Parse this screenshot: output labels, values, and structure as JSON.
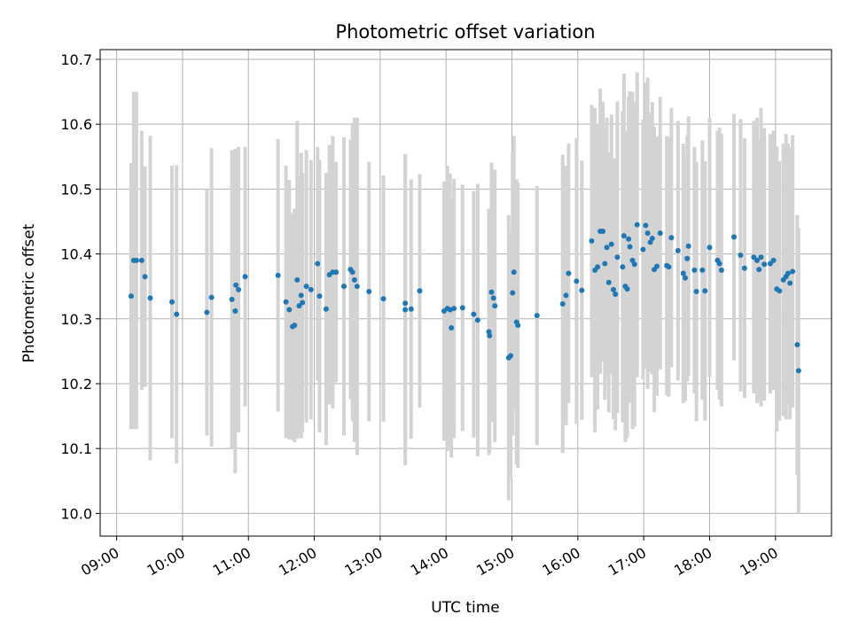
{
  "chart_data": {
    "type": "scatter",
    "title": "Photometric offset variation",
    "xlabel": "UTC time",
    "ylabel": "Photometric offset",
    "x_unit": "hours UTC",
    "xlim": [
      8.75,
      19.85
    ],
    "ylim": [
      9.965,
      10.715
    ],
    "x_ticks": [
      {
        "value": 9,
        "label": "09:00"
      },
      {
        "value": 10,
        "label": "10:00"
      },
      {
        "value": 11,
        "label": "11:00"
      },
      {
        "value": 12,
        "label": "12:00"
      },
      {
        "value": 13,
        "label": "13:00"
      },
      {
        "value": 14,
        "label": "14:00"
      },
      {
        "value": 15,
        "label": "15:00"
      },
      {
        "value": 16,
        "label": "16:00"
      },
      {
        "value": 17,
        "label": "17:00"
      },
      {
        "value": 18,
        "label": "18:00"
      },
      {
        "value": 19,
        "label": "19:00"
      }
    ],
    "y_ticks": [
      {
        "value": 10.0,
        "label": "10.0"
      },
      {
        "value": 10.1,
        "label": "10.1"
      },
      {
        "value": 10.2,
        "label": "10.2"
      },
      {
        "value": 10.3,
        "label": "10.3"
      },
      {
        "value": 10.4,
        "label": "10.4"
      },
      {
        "value": 10.5,
        "label": "10.5"
      },
      {
        "value": 10.6,
        "label": "10.6"
      },
      {
        "value": 10.7,
        "label": "10.7"
      }
    ],
    "grid": true,
    "point_color": "#1f77b4",
    "errorbar_color": "#d3d3d3",
    "points": [
      [
        9.22,
        10.335,
        0.205
      ],
      [
        9.26,
        10.39,
        0.26
      ],
      [
        9.3,
        10.39,
        0.26
      ],
      [
        9.38,
        10.39,
        0.2
      ],
      [
        9.43,
        10.365,
        0.17
      ],
      [
        9.51,
        10.332,
        0.25
      ],
      [
        9.84,
        10.326,
        0.21
      ],
      [
        9.91,
        10.307,
        0.23
      ],
      [
        10.37,
        10.31,
        0.19
      ],
      [
        10.44,
        10.333,
        0.23
      ],
      [
        10.75,
        10.33,
        0.23
      ],
      [
        10.8,
        10.312,
        0.25
      ],
      [
        10.81,
        10.352,
        0.21
      ],
      [
        10.85,
        10.345,
        0.22
      ],
      [
        10.95,
        10.365,
        0.2
      ],
      [
        11.45,
        10.367,
        0.21
      ],
      [
        11.57,
        10.326,
        0.21
      ],
      [
        11.62,
        10.314,
        0.2
      ],
      [
        11.67,
        10.288,
        0.175
      ],
      [
        11.7,
        10.29,
        0.18
      ],
      [
        11.74,
        10.36,
        0.245
      ],
      [
        11.77,
        10.32,
        0.2
      ],
      [
        11.8,
        10.336,
        0.22
      ],
      [
        11.82,
        10.325,
        0.2
      ],
      [
        11.88,
        10.35,
        0.21
      ],
      [
        11.95,
        10.345,
        0.2
      ],
      [
        12.05,
        10.385,
        0.18
      ],
      [
        12.08,
        10.335,
        0.21
      ],
      [
        12.18,
        10.315,
        0.21
      ],
      [
        12.23,
        10.368,
        0.2
      ],
      [
        12.28,
        10.372,
        0.21
      ],
      [
        12.33,
        10.372,
        0.17
      ],
      [
        12.45,
        10.35,
        0.23
      ],
      [
        12.55,
        10.376,
        0.2
      ],
      [
        12.58,
        10.372,
        0.23
      ],
      [
        12.61,
        10.36,
        0.25
      ],
      [
        12.65,
        10.35,
        0.26
      ],
      [
        12.83,
        10.342,
        0.2
      ],
      [
        13.05,
        10.331,
        0.19
      ],
      [
        13.38,
        10.314,
        0.24
      ],
      [
        13.38,
        10.324,
        0.23
      ],
      [
        13.47,
        10.315,
        0.2
      ],
      [
        13.6,
        10.343,
        0.18
      ],
      [
        13.97,
        10.312,
        0.2
      ],
      [
        14.02,
        10.316,
        0.22
      ],
      [
        14.06,
        10.314,
        0.21
      ],
      [
        14.08,
        10.286,
        0.2
      ],
      [
        14.12,
        10.316,
        0.2
      ],
      [
        14.25,
        10.317,
        0.19
      ],
      [
        14.42,
        10.307,
        0.19
      ],
      [
        14.48,
        10.298,
        0.21
      ],
      [
        14.65,
        10.28,
        0.19
      ],
      [
        14.66,
        10.274,
        0.18
      ],
      [
        14.69,
        10.341,
        0.2
      ],
      [
        14.72,
        10.332,
        0.19
      ],
      [
        14.74,
        10.32,
        0.21
      ],
      [
        14.95,
        10.24,
        0.22
      ],
      [
        14.98,
        10.243,
        0.19
      ],
      [
        15.01,
        10.34,
        0.22
      ],
      [
        15.03,
        10.372,
        0.21
      ],
      [
        15.07,
        10.295,
        0.22
      ],
      [
        15.09,
        10.29,
        0.22
      ],
      [
        15.38,
        10.305,
        0.2
      ],
      [
        15.77,
        10.323,
        0.23
      ],
      [
        15.82,
        10.336,
        0.2
      ],
      [
        15.86,
        10.37,
        0.2
      ],
      [
        15.98,
        10.358,
        0.22
      ],
      [
        16.06,
        10.344,
        0.2
      ],
      [
        16.21,
        10.42,
        0.21
      ],
      [
        16.26,
        10.375,
        0.25
      ],
      [
        16.3,
        10.38,
        0.22
      ],
      [
        16.34,
        10.435,
        0.22
      ],
      [
        16.38,
        10.435,
        0.2
      ],
      [
        16.41,
        10.385,
        0.21
      ],
      [
        16.44,
        10.41,
        0.2
      ],
      [
        16.47,
        10.356,
        0.2
      ],
      [
        16.51,
        10.415,
        0.2
      ],
      [
        16.54,
        10.345,
        0.2
      ],
      [
        16.57,
        10.338,
        0.21
      ],
      [
        16.6,
        10.395,
        0.24
      ],
      [
        16.68,
        10.38,
        0.24
      ],
      [
        16.7,
        10.428,
        0.25
      ],
      [
        16.72,
        10.35,
        0.24
      ],
      [
        16.75,
        10.346,
        0.23
      ],
      [
        16.77,
        10.423,
        0.22
      ],
      [
        16.79,
        10.411,
        0.24
      ],
      [
        16.83,
        10.39,
        0.26
      ],
      [
        16.86,
        10.384,
        0.25
      ],
      [
        16.9,
        10.445,
        0.235
      ],
      [
        16.99,
        10.407,
        0.2
      ],
      [
        17.03,
        10.444,
        0.22
      ],
      [
        17.06,
        10.432,
        0.24
      ],
      [
        17.1,
        10.418,
        0.2
      ],
      [
        17.13,
        10.424,
        0.21
      ],
      [
        17.16,
        10.376,
        0.22
      ],
      [
        17.2,
        10.381,
        0.2
      ],
      [
        17.25,
        10.432,
        0.21
      ],
      [
        17.35,
        10.382,
        0.2
      ],
      [
        17.38,
        10.38,
        0.2
      ],
      [
        17.42,
        10.425,
        0.2
      ],
      [
        17.52,
        10.405,
        0.2
      ],
      [
        17.6,
        10.37,
        0.2
      ],
      [
        17.63,
        10.363,
        0.19
      ],
      [
        17.66,
        10.393,
        0.19
      ],
      [
        17.68,
        10.412,
        0.2
      ],
      [
        17.77,
        10.375,
        0.19
      ],
      [
        17.8,
        10.342,
        0.2
      ],
      [
        17.89,
        10.375,
        0.2
      ],
      [
        17.93,
        10.343,
        0.2
      ],
      [
        18.0,
        10.41,
        0.2
      ],
      [
        18.12,
        10.39,
        0.2
      ],
      [
        18.15,
        10.385,
        0.21
      ],
      [
        18.18,
        10.375,
        0.21
      ],
      [
        18.37,
        10.426,
        0.19
      ],
      [
        18.47,
        10.398,
        0.21
      ],
      [
        18.53,
        10.378,
        0.2
      ],
      [
        18.67,
        10.395,
        0.21
      ],
      [
        18.72,
        10.39,
        0.22
      ],
      [
        18.75,
        10.376,
        0.2
      ],
      [
        18.78,
        10.395,
        0.23
      ],
      [
        18.83,
        10.384,
        0.21
      ],
      [
        18.92,
        10.385,
        0.2
      ],
      [
        18.97,
        10.39,
        0.2
      ],
      [
        19.02,
        10.346,
        0.22
      ],
      [
        19.06,
        10.343,
        0.2
      ],
      [
        19.12,
        10.36,
        0.21
      ],
      [
        19.16,
        10.365,
        0.22
      ],
      [
        19.19,
        10.37,
        0.2
      ],
      [
        19.22,
        10.355,
        0.21
      ],
      [
        19.26,
        10.373,
        0.21
      ],
      [
        19.33,
        10.26,
        0.2
      ],
      [
        19.35,
        10.22,
        0.22
      ]
    ]
  }
}
